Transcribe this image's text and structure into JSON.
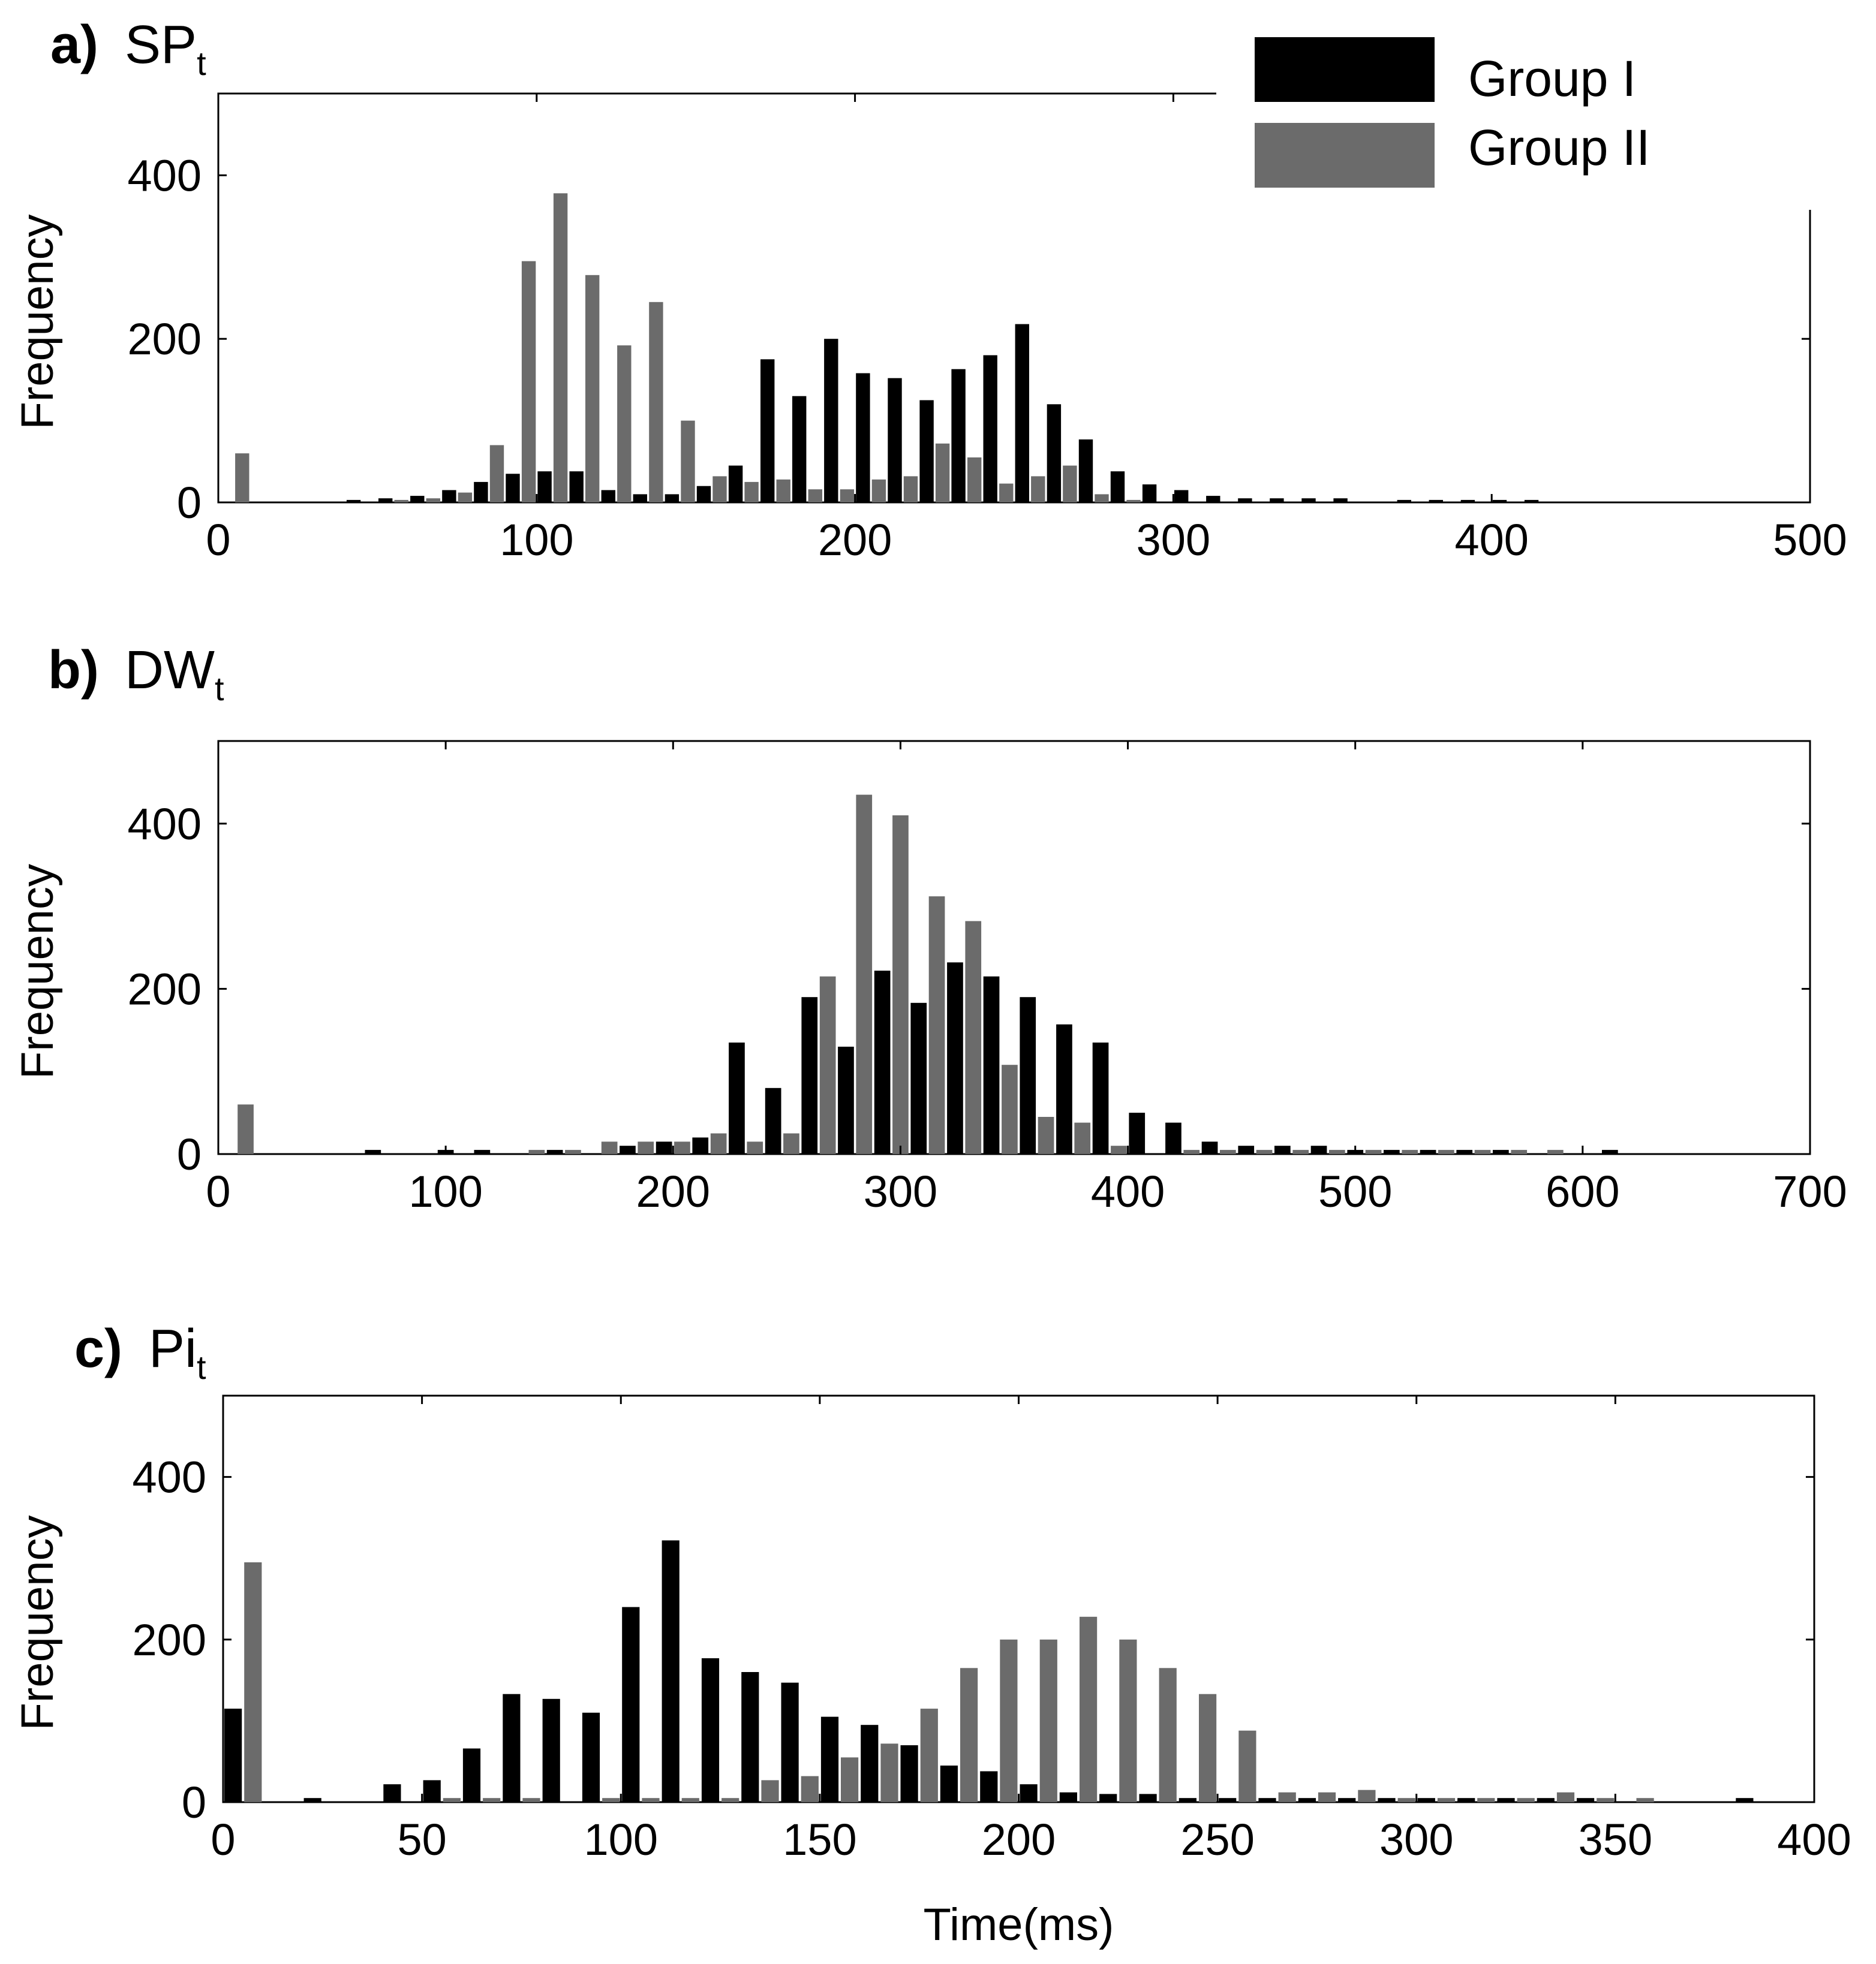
{
  "chart_data": [
    {
      "type": "bar",
      "panel_letter": "a)",
      "title_main": "SP",
      "title_sub": "t",
      "ylabel": "Frequency",
      "xlabel": "",
      "xlim": [
        0,
        500
      ],
      "ylim": [
        0,
        500
      ],
      "xticks": [
        0,
        100,
        200,
        300,
        400,
        500
      ],
      "yticks": [
        0,
        200,
        400
      ],
      "grid": false,
      "bin_width": 10,
      "x": [
        5,
        15,
        25,
        35,
        45,
        55,
        65,
        75,
        85,
        95,
        105,
        115,
        125,
        135,
        145,
        155,
        165,
        175,
        185,
        195,
        205,
        215,
        225,
        235,
        245,
        255,
        265,
        275,
        285,
        295,
        305,
        315,
        325,
        335,
        345,
        355,
        365,
        375,
        385,
        395,
        405,
        415,
        425,
        435,
        445,
        455,
        465,
        475,
        485,
        495
      ],
      "series": [
        {
          "name": "Group I",
          "color": "#000000",
          "values": [
            0,
            0,
            0,
            0,
            3,
            5,
            8,
            15,
            25,
            35,
            38,
            38,
            15,
            10,
            10,
            20,
            45,
            175,
            130,
            200,
            158,
            152,
            125,
            163,
            180,
            218,
            120,
            77,
            38,
            22,
            15,
            8,
            5,
            5,
            5,
            5,
            0,
            3,
            3,
            3,
            3,
            3,
            0,
            0,
            0,
            0,
            0,
            0,
            0,
            0
          ]
        },
        {
          "name": "Group II",
          "color": "#6b6b6b",
          "values": [
            60,
            0,
            0,
            0,
            0,
            3,
            5,
            12,
            70,
            295,
            378,
            278,
            192,
            245,
            100,
            32,
            25,
            28,
            16,
            16,
            28,
            32,
            72,
            55,
            23,
            32,
            45,
            10,
            3,
            0,
            0,
            0,
            0,
            0,
            0,
            0,
            0,
            0,
            0,
            0,
            0,
            0,
            0,
            0,
            0,
            0,
            0,
            0,
            0,
            0
          ]
        }
      ]
    },
    {
      "type": "bar",
      "panel_letter": "b)",
      "title_main": "DW",
      "title_sub": "t",
      "ylabel": "Frequency",
      "xlabel": "",
      "xlim": [
        0,
        700
      ],
      "ylim": [
        0,
        500
      ],
      "xticks": [
        0,
        100,
        200,
        300,
        400,
        500,
        600,
        700
      ],
      "yticks": [
        0,
        200,
        400
      ],
      "grid": false,
      "bin_width": 16,
      "x": [
        8,
        24,
        40,
        56,
        72,
        88,
        104,
        120,
        136,
        152,
        168,
        184,
        200,
        216,
        232,
        248,
        264,
        280,
        296,
        312,
        328,
        344,
        360,
        376,
        392,
        408,
        424,
        440,
        456,
        472,
        488,
        504,
        520,
        536,
        552,
        568,
        584,
        600,
        616,
        632,
        648,
        664,
        680
      ],
      "series": [
        {
          "name": "Group I",
          "color": "#000000",
          "values": [
            0,
            0,
            0,
            0,
            5,
            0,
            5,
            5,
            0,
            5,
            0,
            10,
            15,
            20,
            135,
            80,
            190,
            130,
            222,
            183,
            232,
            215,
            190,
            157,
            135,
            50,
            38,
            15,
            10,
            10,
            10,
            5,
            5,
            5,
            5,
            5,
            0,
            0,
            5,
            0,
            0,
            0,
            0
          ]
        },
        {
          "name": "Group II",
          "color": "#6b6b6b",
          "values": [
            60,
            0,
            0,
            0,
            0,
            0,
            0,
            0,
            5,
            5,
            15,
            15,
            15,
            25,
            15,
            25,
            215,
            435,
            410,
            312,
            282,
            108,
            45,
            38,
            10,
            0,
            5,
            5,
            5,
            5,
            5,
            5,
            5,
            5,
            5,
            5,
            5,
            0,
            0,
            0,
            0,
            0,
            0
          ]
        }
      ]
    },
    {
      "type": "bar",
      "panel_letter": "c)",
      "title_main": "Pi",
      "title_sub": "t",
      "ylabel": "Frequency",
      "xlabel": "Time(ms)",
      "xlim": [
        0,
        400
      ],
      "ylim": [
        0,
        500
      ],
      "xticks": [
        0,
        50,
        100,
        150,
        200,
        250,
        300,
        350,
        400
      ],
      "yticks": [
        0,
        200,
        400
      ],
      "grid": false,
      "bin_width": 10,
      "x": [
        5,
        15,
        25,
        35,
        45,
        55,
        65,
        75,
        85,
        95,
        105,
        115,
        125,
        135,
        145,
        155,
        165,
        175,
        185,
        195,
        205,
        215,
        225,
        235,
        245,
        255,
        265,
        275,
        285,
        295,
        305,
        315,
        325,
        335,
        345,
        355,
        365,
        375,
        385,
        395
      ],
      "series": [
        {
          "name": "Group I",
          "color": "#000000",
          "values": [
            115,
            0,
            5,
            0,
            22,
            27,
            66,
            133,
            127,
            110,
            240,
            322,
            177,
            160,
            147,
            105,
            95,
            70,
            45,
            38,
            22,
            12,
            10,
            10,
            5,
            5,
            5,
            5,
            5,
            5,
            5,
            5,
            5,
            5,
            5,
            0,
            0,
            0,
            5,
            0
          ]
        },
        {
          "name": "Group II",
          "color": "#6b6b6b",
          "values": [
            295,
            0,
            0,
            0,
            0,
            5,
            5,
            5,
            0,
            5,
            5,
            5,
            5,
            27,
            32,
            55,
            72,
            115,
            165,
            200,
            200,
            228,
            200,
            165,
            133,
            88,
            12,
            12,
            15,
            5,
            5,
            5,
            5,
            12,
            5,
            5,
            0,
            0,
            0,
            0
          ]
        }
      ]
    }
  ],
  "legend": {
    "position": "top-right",
    "items": [
      {
        "label": "Group I",
        "color": "#000000"
      },
      {
        "label": "Group II",
        "color": "#6b6b6b"
      }
    ]
  }
}
